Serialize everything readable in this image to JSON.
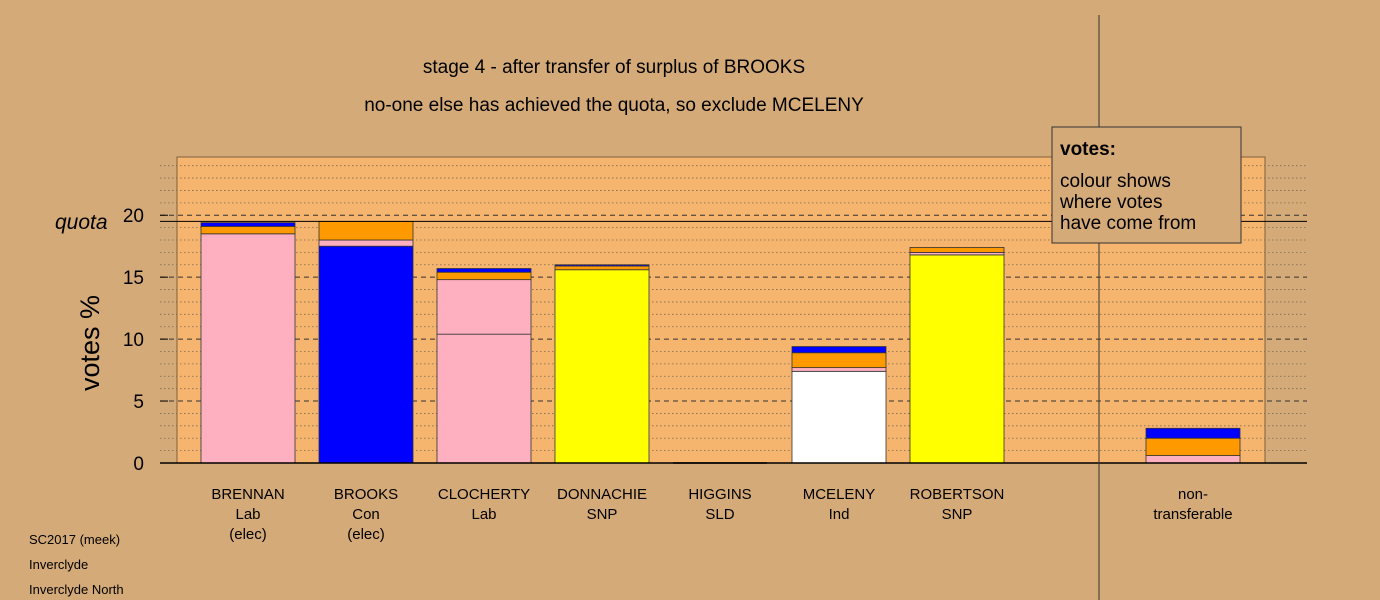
{
  "titles": [
    "stage 4 - after transfer of surplus of BROOKS",
    "no-one else has achieved the quota, so exclude MCELENY"
  ],
  "footer": [
    "SC2017 (meek)",
    "Inverclyde",
    "Inverclyde North"
  ],
  "legend": {
    "title": "votes:",
    "lines": [
      "colour shows",
      "where votes",
      "have come from"
    ]
  },
  "quota_label": "quota",
  "colors": {
    "background": "#d4aa78",
    "plot_background": "#f5b56e",
    "pink": "#ffb0c0",
    "blue": "#0000ff",
    "orange": "#ff9900",
    "yellow": "#ffff00",
    "white": "#ffffff"
  },
  "chart_data": {
    "type": "bar",
    "stacked": true,
    "ylabel": "votes %",
    "ylim": [
      0,
      24.7
    ],
    "yticks": [
      0,
      5,
      10,
      15,
      20
    ],
    "quota": 19.5,
    "grid": true,
    "categories": [
      {
        "name": "BRENNAN",
        "party": "Lab",
        "status": "(elec)",
        "segments": [
          {
            "value": 18.5,
            "color": "pink"
          },
          {
            "value": 0.6,
            "color": "orange"
          },
          {
            "value": 0.3,
            "color": "blue"
          }
        ]
      },
      {
        "name": "BROOKS",
        "party": "Con",
        "status": "(elec)",
        "segments": [
          {
            "value": 17.5,
            "color": "blue"
          },
          {
            "value": 0.5,
            "color": "pink"
          },
          {
            "value": 1.5,
            "color": "orange"
          }
        ]
      },
      {
        "name": "CLOCHERTY",
        "party": "Lab",
        "status": "",
        "segments": [
          {
            "value": 10.4,
            "color": "pink"
          },
          {
            "value": 4.4,
            "color": "pink"
          },
          {
            "value": 0.6,
            "color": "orange"
          },
          {
            "value": 0.3,
            "color": "blue"
          }
        ]
      },
      {
        "name": "DONNACHIE",
        "party": "SNP",
        "status": "",
        "segments": [
          {
            "value": 15.6,
            "color": "yellow"
          },
          {
            "value": 0.3,
            "color": "orange"
          },
          {
            "value": 0.1,
            "color": "blue"
          }
        ]
      },
      {
        "name": "HIGGINS",
        "party": "SLD",
        "status": "",
        "segments": []
      },
      {
        "name": "MCELENY",
        "party": "Ind",
        "status": "",
        "segments": [
          {
            "value": 7.4,
            "color": "white"
          },
          {
            "value": 0.3,
            "color": "pink"
          },
          {
            "value": 1.2,
            "color": "orange"
          },
          {
            "value": 0.5,
            "color": "blue"
          }
        ]
      },
      {
        "name": "ROBERTSON",
        "party": "SNP",
        "status": "",
        "segments": [
          {
            "value": 16.8,
            "color": "yellow"
          },
          {
            "value": 0.2,
            "color": "pink"
          },
          {
            "value": 0.4,
            "color": "orange"
          }
        ]
      },
      {
        "name": "non-",
        "party": "transferable",
        "status": "",
        "segments": [
          {
            "value": 0.6,
            "color": "pink"
          },
          {
            "value": 1.4,
            "color": "orange"
          },
          {
            "value": 0.8,
            "color": "blue"
          }
        ]
      }
    ]
  }
}
